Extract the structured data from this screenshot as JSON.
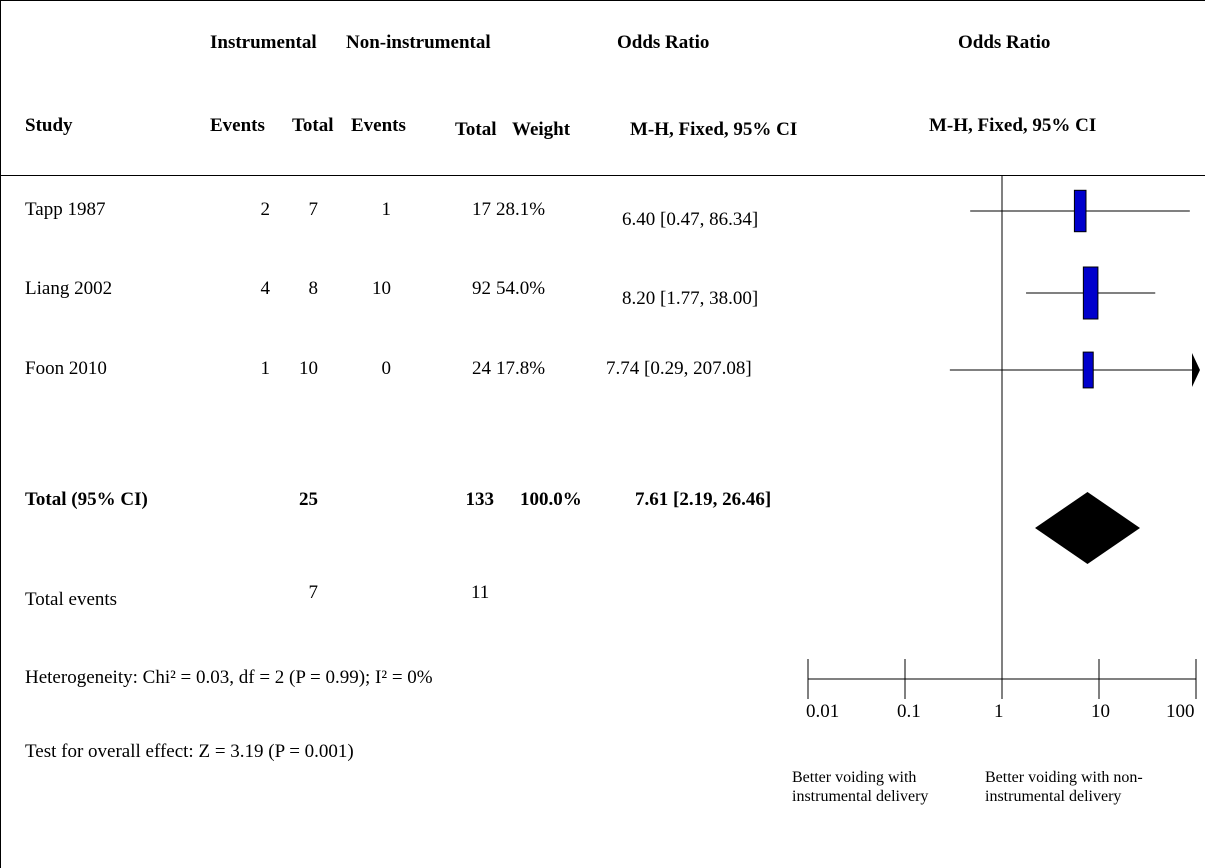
{
  "header": {
    "group1": "Instrumental",
    "group2": "Non-instrumental",
    "effect_col": "Odds Ratio",
    "plot_col": "Odds Ratio",
    "study": "Study",
    "events1": "Events",
    "total1": "Total",
    "events2": "Events",
    "total2": "Total",
    "weight": "Weight",
    "method": "M-H, Fixed, 95% CI",
    "plot_method": "M-H, Fixed, 95% CI"
  },
  "rows": [
    {
      "study": "Tapp 1987",
      "events1": "2",
      "total1": "7",
      "events2": "1",
      "total2": "17",
      "weight": "28.1%",
      "ci": "6.40 [0.47, 86.34]"
    },
    {
      "study": "Liang 2002",
      "events1": "4",
      "total1": "8",
      "events2": "10",
      "total2": "92",
      "weight": "54.0%",
      "ci": "8.20 [1.77, 38.00]"
    },
    {
      "study": "Foon 2010",
      "events1": "1",
      "total1": "10",
      "events2": "0",
      "total2": "24",
      "weight": "17.8%",
      "ci": "7.74 [0.29, 207.08]"
    }
  ],
  "total_row": {
    "label": "Total (95% CI)",
    "total1": "25",
    "total2": "133",
    "weight": "100.0%",
    "ci": "7.61 [2.19, 26.46]"
  },
  "events_row": {
    "label": "Total events",
    "events1": "7",
    "events2": "11"
  },
  "heterogeneity": "Heterogeneity: Chi² = 0.03, df = 2 (P = 0.99); I² = 0%",
  "overall_effect": "Test for overall effect: Z = 3.19 (P = 0.001)",
  "favours_left": "Better voiding with instrumental delivery",
  "favours_right": "Better voiding with non-instrumental delivery",
  "chart_data": {
    "type": "forest",
    "scale": "log",
    "xlim": [
      0.01,
      100
    ],
    "ticks": [
      0.01,
      0.1,
      1,
      10,
      100
    ],
    "tick_labels": [
      "0.01",
      "0.1",
      "1",
      "10",
      "100"
    ],
    "null_value": 1,
    "studies": [
      {
        "name": "Tapp 1987",
        "or": 6.4,
        "lower": 0.47,
        "upper": 86.34,
        "weight": 28.1
      },
      {
        "name": "Liang 2002",
        "or": 8.2,
        "lower": 1.77,
        "upper": 38.0,
        "weight": 54.0
      },
      {
        "name": "Foon 2010",
        "or": 7.74,
        "lower": 0.29,
        "upper": 207.08,
        "weight": 17.8
      }
    ],
    "pooled": {
      "or": 7.61,
      "lower": 2.19,
      "upper": 26.46
    },
    "marker_color": "#0000cc"
  }
}
